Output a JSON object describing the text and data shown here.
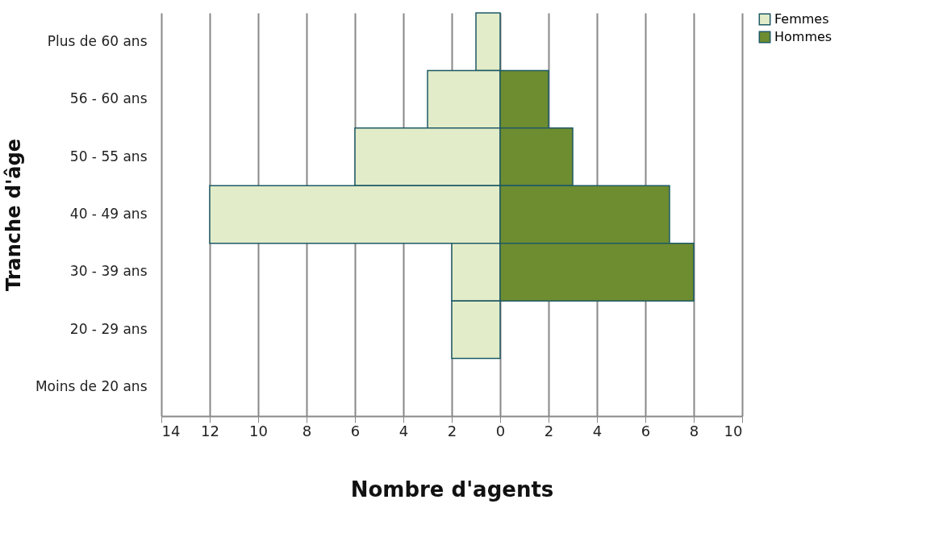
{
  "chart_data": {
    "type": "bar",
    "orientation": "horizontal",
    "xlabel": "Nombre d'agents",
    "ylabel": "Tranche d'âge",
    "categories": [
      "Plus de 60 ans",
      "56 - 60 ans",
      "50 - 55 ans",
      "40 - 49 ans",
      "30 - 39 ans",
      "20 - 29 ans",
      "Moins de 20 ans"
    ],
    "stacked": true,
    "series": [
      {
        "name": "Femmes",
        "color": "#e2ecc9",
        "values": [
          -1,
          -3,
          -6,
          -12,
          -2,
          -2,
          null
        ]
      },
      {
        "name": "Hommes",
        "color": "#6e8c30",
        "values": [
          null,
          2,
          3,
          7,
          8,
          null,
          null
        ]
      }
    ],
    "xlim": [
      -14,
      10
    ],
    "xticks": [
      {
        "value": -14,
        "label": "14"
      },
      {
        "value": -12,
        "label": "12"
      },
      {
        "value": -10,
        "label": "10"
      },
      {
        "value": -8,
        "label": "8"
      },
      {
        "value": -6,
        "label": "6"
      },
      {
        "value": -4,
        "label": "4"
      },
      {
        "value": -2,
        "label": "2"
      },
      0,
      2,
      4,
      6,
      8,
      10
    ],
    "grid": "x",
    "legend": "right"
  }
}
